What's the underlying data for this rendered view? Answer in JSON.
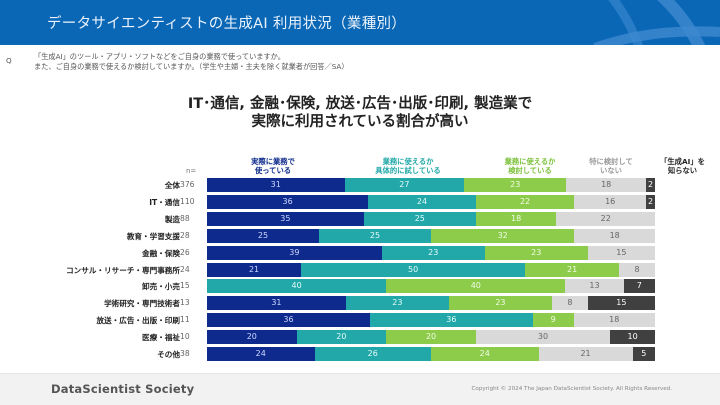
{
  "header": {
    "title": "データサイエンティストの生成AI 利用状況（業種別）"
  },
  "question": {
    "mark": "Q",
    "lines": [
      "「生成AI」のツール・アプリ・ソフトなどをご自身の業務で使っていますか。",
      "また、ご自身の業務で使えるか検討していますか。（学生や主婦・主夫を除く就業者が回答／SA）"
    ]
  },
  "headline": {
    "line1": "IT･通信, 金融･保険, 放送･広告･出版･印刷, 製造業で",
    "line2": "実際に利用されている割合が高い"
  },
  "footer": {
    "brand": "DataScientist Society",
    "copyright": "Copyright © 2024  The Japan DataScientist Society. All Rights Reserved."
  },
  "chart_data": {
    "type": "bar",
    "orientation": "horizontal",
    "stacked": true,
    "unit": "%",
    "n_header": "n=",
    "xlim": [
      0,
      100
    ],
    "grid": false,
    "legend_position": "top",
    "categories": [
      "全体",
      "IT・通信",
      "製造",
      "教育・学習支援",
      "金融・保険",
      "コンサル・リサーチ・専門事務所",
      "卸売・小売",
      "学術研究・専門技術者",
      "放送・広告・出版・印刷",
      "医療・福祉",
      "その他"
    ],
    "n": [
      376,
      110,
      88,
      28,
      26,
      24,
      15,
      13,
      11,
      10,
      38
    ],
    "series": [
      {
        "name": "実際に業務で使っている",
        "legend_lines": [
          "実際に業務で",
          "使っている"
        ],
        "color": "#0d2a8c",
        "label_color": "#cfd8ff",
        "legend_color": "#0d2a8c",
        "values": [
          31,
          36,
          35,
          25,
          39,
          21,
          0,
          31,
          36,
          20,
          24
        ]
      },
      {
        "name": "業務に使えるか具体的に試している",
        "legend_lines": [
          "業務に使えるか",
          "具体的に試している"
        ],
        "color": "#22a8a8",
        "label_color": "#e6fbfb",
        "legend_color": "#22a8a8",
        "values": [
          27,
          24,
          25,
          25,
          23,
          50,
          40,
          23,
          36,
          20,
          26
        ]
      },
      {
        "name": "業務に使えるか検討している",
        "legend_lines": [
          "業務に使えるか",
          "検討している"
        ],
        "color": "#8dcc4a",
        "label_color": "#f2fbe6",
        "legend_color": "#7cc13a",
        "values": [
          23,
          22,
          18,
          32,
          23,
          21,
          40,
          23,
          9,
          20,
          24
        ]
      },
      {
        "name": "特に検討していない",
        "legend_lines": [
          "特に検討して",
          "いない"
        ],
        "color": "#d9d9d9",
        "label_color": "#666666",
        "legend_color": "#9a9a9a",
        "values": [
          18,
          16,
          22,
          18,
          15,
          8,
          13,
          8,
          18,
          30,
          21
        ]
      },
      {
        "name": "「生成AI」を知らない",
        "legend_lines": [
          "「生成AI」を",
          "知らない"
        ],
        "color": "#404040",
        "label_color": "#ffffff",
        "legend_color": "#222222",
        "values": [
          2,
          2,
          0,
          0,
          0,
          0,
          7,
          15,
          0,
          10,
          5
        ]
      }
    ]
  }
}
